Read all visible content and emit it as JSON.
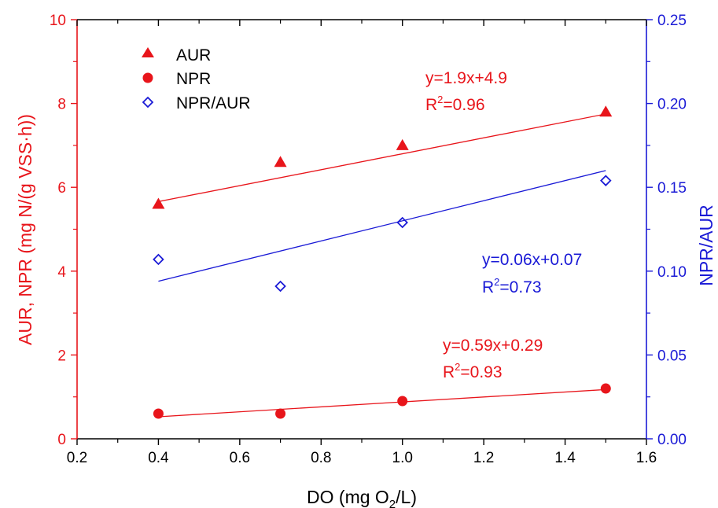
{
  "chart_data": {
    "type": "scatter",
    "x": [
      0.4,
      0.7,
      1.0,
      1.5
    ],
    "xlabel": {
      "pre": "DO (mg O",
      "sub": "2",
      "post": "/L)"
    },
    "ylabel_left": "AUR, NPR (mg N/(g VSS·h))",
    "ylabel_right": "NPR/AUR",
    "xlim": [
      0.2,
      1.6
    ],
    "ylim_left": [
      0,
      10
    ],
    "ylim_right": [
      0,
      0.25
    ],
    "x_ticks": [
      "0.2",
      "0.4",
      "0.6",
      "0.8",
      "1.0",
      "1.2",
      "1.4",
      "1.6"
    ],
    "y_left_ticks": [
      "0",
      "2",
      "4",
      "6",
      "8",
      "10"
    ],
    "y_right_ticks": [
      "0.00",
      "0.05",
      "0.10",
      "0.15",
      "0.20",
      "0.25"
    ],
    "grid": false,
    "legend_position": "top-left",
    "colors": {
      "left_axis": "#e8151b",
      "right_axis": "#1a1ad6",
      "frame": "#000000"
    },
    "series": [
      {
        "name": "AUR",
        "marker": "triangle",
        "axis": "left",
        "color": "#e8151b",
        "values": [
          5.6,
          6.6,
          7.0,
          7.8
        ],
        "fit": {
          "slope": 1.9,
          "intercept": 4.9,
          "eq": "y=1.9x+4.9",
          "r2": "=0.96"
        }
      },
      {
        "name": "NPR",
        "marker": "circle",
        "axis": "left",
        "color": "#e8151b",
        "values": [
          0.6,
          0.6,
          0.9,
          1.2
        ],
        "fit": {
          "slope": 0.59,
          "intercept": 0.29,
          "eq": "y=0.59x+0.29",
          "r2": "=0.93"
        }
      },
      {
        "name": "NPR/AUR",
        "marker": "diamond-open",
        "axis": "right",
        "color": "#1a1ad6",
        "values": [
          0.107,
          0.091,
          0.129,
          0.154
        ],
        "fit": {
          "slope": 0.06,
          "intercept": 0.07,
          "eq": "y=0.06x+0.07",
          "r2": "=0.73"
        }
      }
    ]
  }
}
